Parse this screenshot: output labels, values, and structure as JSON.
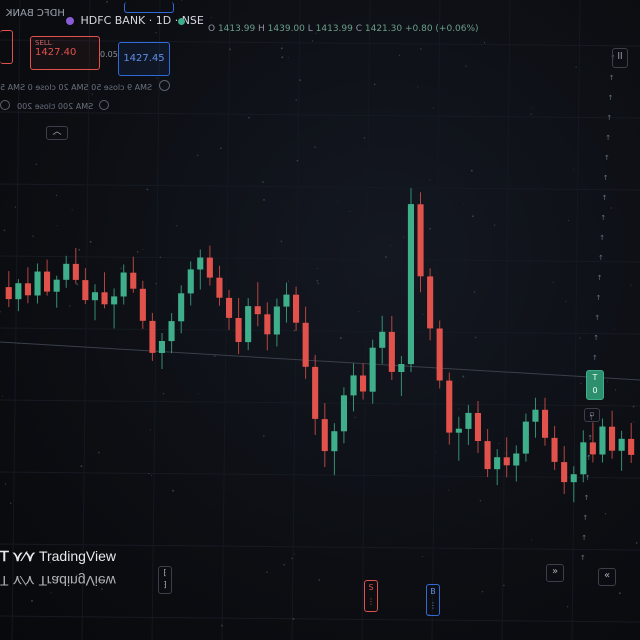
{
  "header": {
    "symbol": "HDFC BANK · 1D · NSE",
    "symbol_secondary": "HDFC BANK",
    "sell_price": "1427.40",
    "sell_label": "SELL",
    "spread": "0.05",
    "buy_price": "1427.45",
    "ohlc": {
      "open": "1413.99",
      "high": "1439.00",
      "low": "1413.99",
      "close": "1421.30",
      "change": "+0.80 (+0.06%)"
    }
  },
  "indicators": [
    {
      "label": "SMA 9 close 50 SMA 20 close 0 SMA 5"
    },
    {
      "label": "SMA 200 close 200"
    }
  ],
  "collapse_icon": "chevron-up-icon",
  "watermark": {
    "text": "TradingView"
  },
  "colors": {
    "up": "#3fae8a",
    "down": "#e0524b",
    "accent": "#2f6bd8",
    "grid": "#1b1f27"
  },
  "chart_data": {
    "type": "candlestick",
    "candles": [
      {
        "o": 1414,
        "h": 1418,
        "l": 1409,
        "c": 1411
      },
      {
        "o": 1411,
        "h": 1416,
        "l": 1408,
        "c": 1415
      },
      {
        "o": 1415,
        "h": 1419,
        "l": 1410,
        "c": 1412
      },
      {
        "o": 1412,
        "h": 1420,
        "l": 1410,
        "c": 1418
      },
      {
        "o": 1418,
        "h": 1421,
        "l": 1412,
        "c": 1413
      },
      {
        "o": 1413,
        "h": 1417,
        "l": 1409,
        "c": 1416
      },
      {
        "o": 1416,
        "h": 1422,
        "l": 1414,
        "c": 1420
      },
      {
        "o": 1420,
        "h": 1424,
        "l": 1415,
        "c": 1416
      },
      {
        "o": 1416,
        "h": 1419,
        "l": 1410,
        "c": 1411
      },
      {
        "o": 1411,
        "h": 1415,
        "l": 1406,
        "c": 1413
      },
      {
        "o": 1413,
        "h": 1418,
        "l": 1409,
        "c": 1410
      },
      {
        "o": 1410,
        "h": 1414,
        "l": 1404,
        "c": 1412
      },
      {
        "o": 1412,
        "h": 1420,
        "l": 1410,
        "c": 1418
      },
      {
        "o": 1418,
        "h": 1422,
        "l": 1413,
        "c": 1414
      },
      {
        "o": 1414,
        "h": 1416,
        "l": 1404,
        "c": 1406
      },
      {
        "o": 1406,
        "h": 1408,
        "l": 1396,
        "c": 1398
      },
      {
        "o": 1398,
        "h": 1403,
        "l": 1394,
        "c": 1401
      },
      {
        "o": 1401,
        "h": 1408,
        "l": 1398,
        "c": 1406
      },
      {
        "o": 1406,
        "h": 1415,
        "l": 1403,
        "c": 1413
      },
      {
        "o": 1413,
        "h": 1421,
        "l": 1410,
        "c": 1419
      },
      {
        "o": 1419,
        "h": 1424,
        "l": 1414,
        "c": 1422
      },
      {
        "o": 1422,
        "h": 1425,
        "l": 1415,
        "c": 1417
      },
      {
        "o": 1417,
        "h": 1420,
        "l": 1410,
        "c": 1412
      },
      {
        "o": 1412,
        "h": 1414,
        "l": 1404,
        "c": 1407
      },
      {
        "o": 1407,
        "h": 1412,
        "l": 1398,
        "c": 1401
      },
      {
        "o": 1401,
        "h": 1412,
        "l": 1399,
        "c": 1410
      },
      {
        "o": 1410,
        "h": 1416,
        "l": 1405,
        "c": 1408
      },
      {
        "o": 1408,
        "h": 1411,
        "l": 1399,
        "c": 1403
      },
      {
        "o": 1403,
        "h": 1412,
        "l": 1400,
        "c": 1410
      },
      {
        "o": 1410,
        "h": 1416,
        "l": 1406,
        "c": 1413
      },
      {
        "o": 1413,
        "h": 1415,
        "l": 1404,
        "c": 1406
      },
      {
        "o": 1406,
        "h": 1410,
        "l": 1392,
        "c": 1395
      },
      {
        "o": 1395,
        "h": 1398,
        "l": 1378,
        "c": 1382
      },
      {
        "o": 1382,
        "h": 1386,
        "l": 1370,
        "c": 1374
      },
      {
        "o": 1374,
        "h": 1381,
        "l": 1368,
        "c": 1379
      },
      {
        "o": 1379,
        "h": 1390,
        "l": 1376,
        "c": 1388
      },
      {
        "o": 1388,
        "h": 1396,
        "l": 1384,
        "c": 1393
      },
      {
        "o": 1393,
        "h": 1396,
        "l": 1387,
        "c": 1389
      },
      {
        "o": 1389,
        "h": 1402,
        "l": 1386,
        "c": 1400
      },
      {
        "o": 1400,
        "h": 1408,
        "l": 1396,
        "c": 1404
      },
      {
        "o": 1404,
        "h": 1408,
        "l": 1392,
        "c": 1394
      },
      {
        "o": 1394,
        "h": 1398,
        "l": 1388,
        "c": 1396
      },
      {
        "o": 1396,
        "h": 1440,
        "l": 1394,
        "c": 1436
      },
      {
        "o": 1436,
        "h": 1439,
        "l": 1414,
        "c": 1418
      },
      {
        "o": 1418,
        "h": 1420,
        "l": 1402,
        "c": 1405
      },
      {
        "o": 1405,
        "h": 1407,
        "l": 1390,
        "c": 1392
      },
      {
        "o": 1392,
        "h": 1394,
        "l": 1376,
        "c": 1379
      },
      {
        "o": 1379,
        "h": 1383,
        "l": 1372,
        "c": 1380
      },
      {
        "o": 1380,
        "h": 1386,
        "l": 1376,
        "c": 1384
      },
      {
        "o": 1384,
        "h": 1387,
        "l": 1374,
        "c": 1377
      },
      {
        "o": 1377,
        "h": 1380,
        "l": 1368,
        "c": 1370
      },
      {
        "o": 1370,
        "h": 1375,
        "l": 1366,
        "c": 1373
      },
      {
        "o": 1373,
        "h": 1378,
        "l": 1368,
        "c": 1371
      },
      {
        "o": 1371,
        "h": 1376,
        "l": 1367,
        "c": 1374
      },
      {
        "o": 1374,
        "h": 1384,
        "l": 1372,
        "c": 1382
      },
      {
        "o": 1382,
        "h": 1388,
        "l": 1378,
        "c": 1385
      },
      {
        "o": 1385,
        "h": 1388,
        "l": 1376,
        "c": 1378
      },
      {
        "o": 1378,
        "h": 1381,
        "l": 1370,
        "c": 1372
      },
      {
        "o": 1372,
        "h": 1376,
        "l": 1364,
        "c": 1367
      },
      {
        "o": 1367,
        "h": 1371,
        "l": 1362,
        "c": 1369
      },
      {
        "o": 1369,
        "h": 1380,
        "l": 1367,
        "c": 1377
      },
      {
        "o": 1377,
        "h": 1382,
        "l": 1372,
        "c": 1374
      },
      {
        "o": 1374,
        "h": 1383,
        "l": 1372,
        "c": 1381
      },
      {
        "o": 1381,
        "h": 1385,
        "l": 1373,
        "c": 1375
      },
      {
        "o": 1375,
        "h": 1380,
        "l": 1370,
        "c": 1378
      },
      {
        "o": 1378,
        "h": 1382,
        "l": 1372,
        "c": 1374
      }
    ]
  }
}
